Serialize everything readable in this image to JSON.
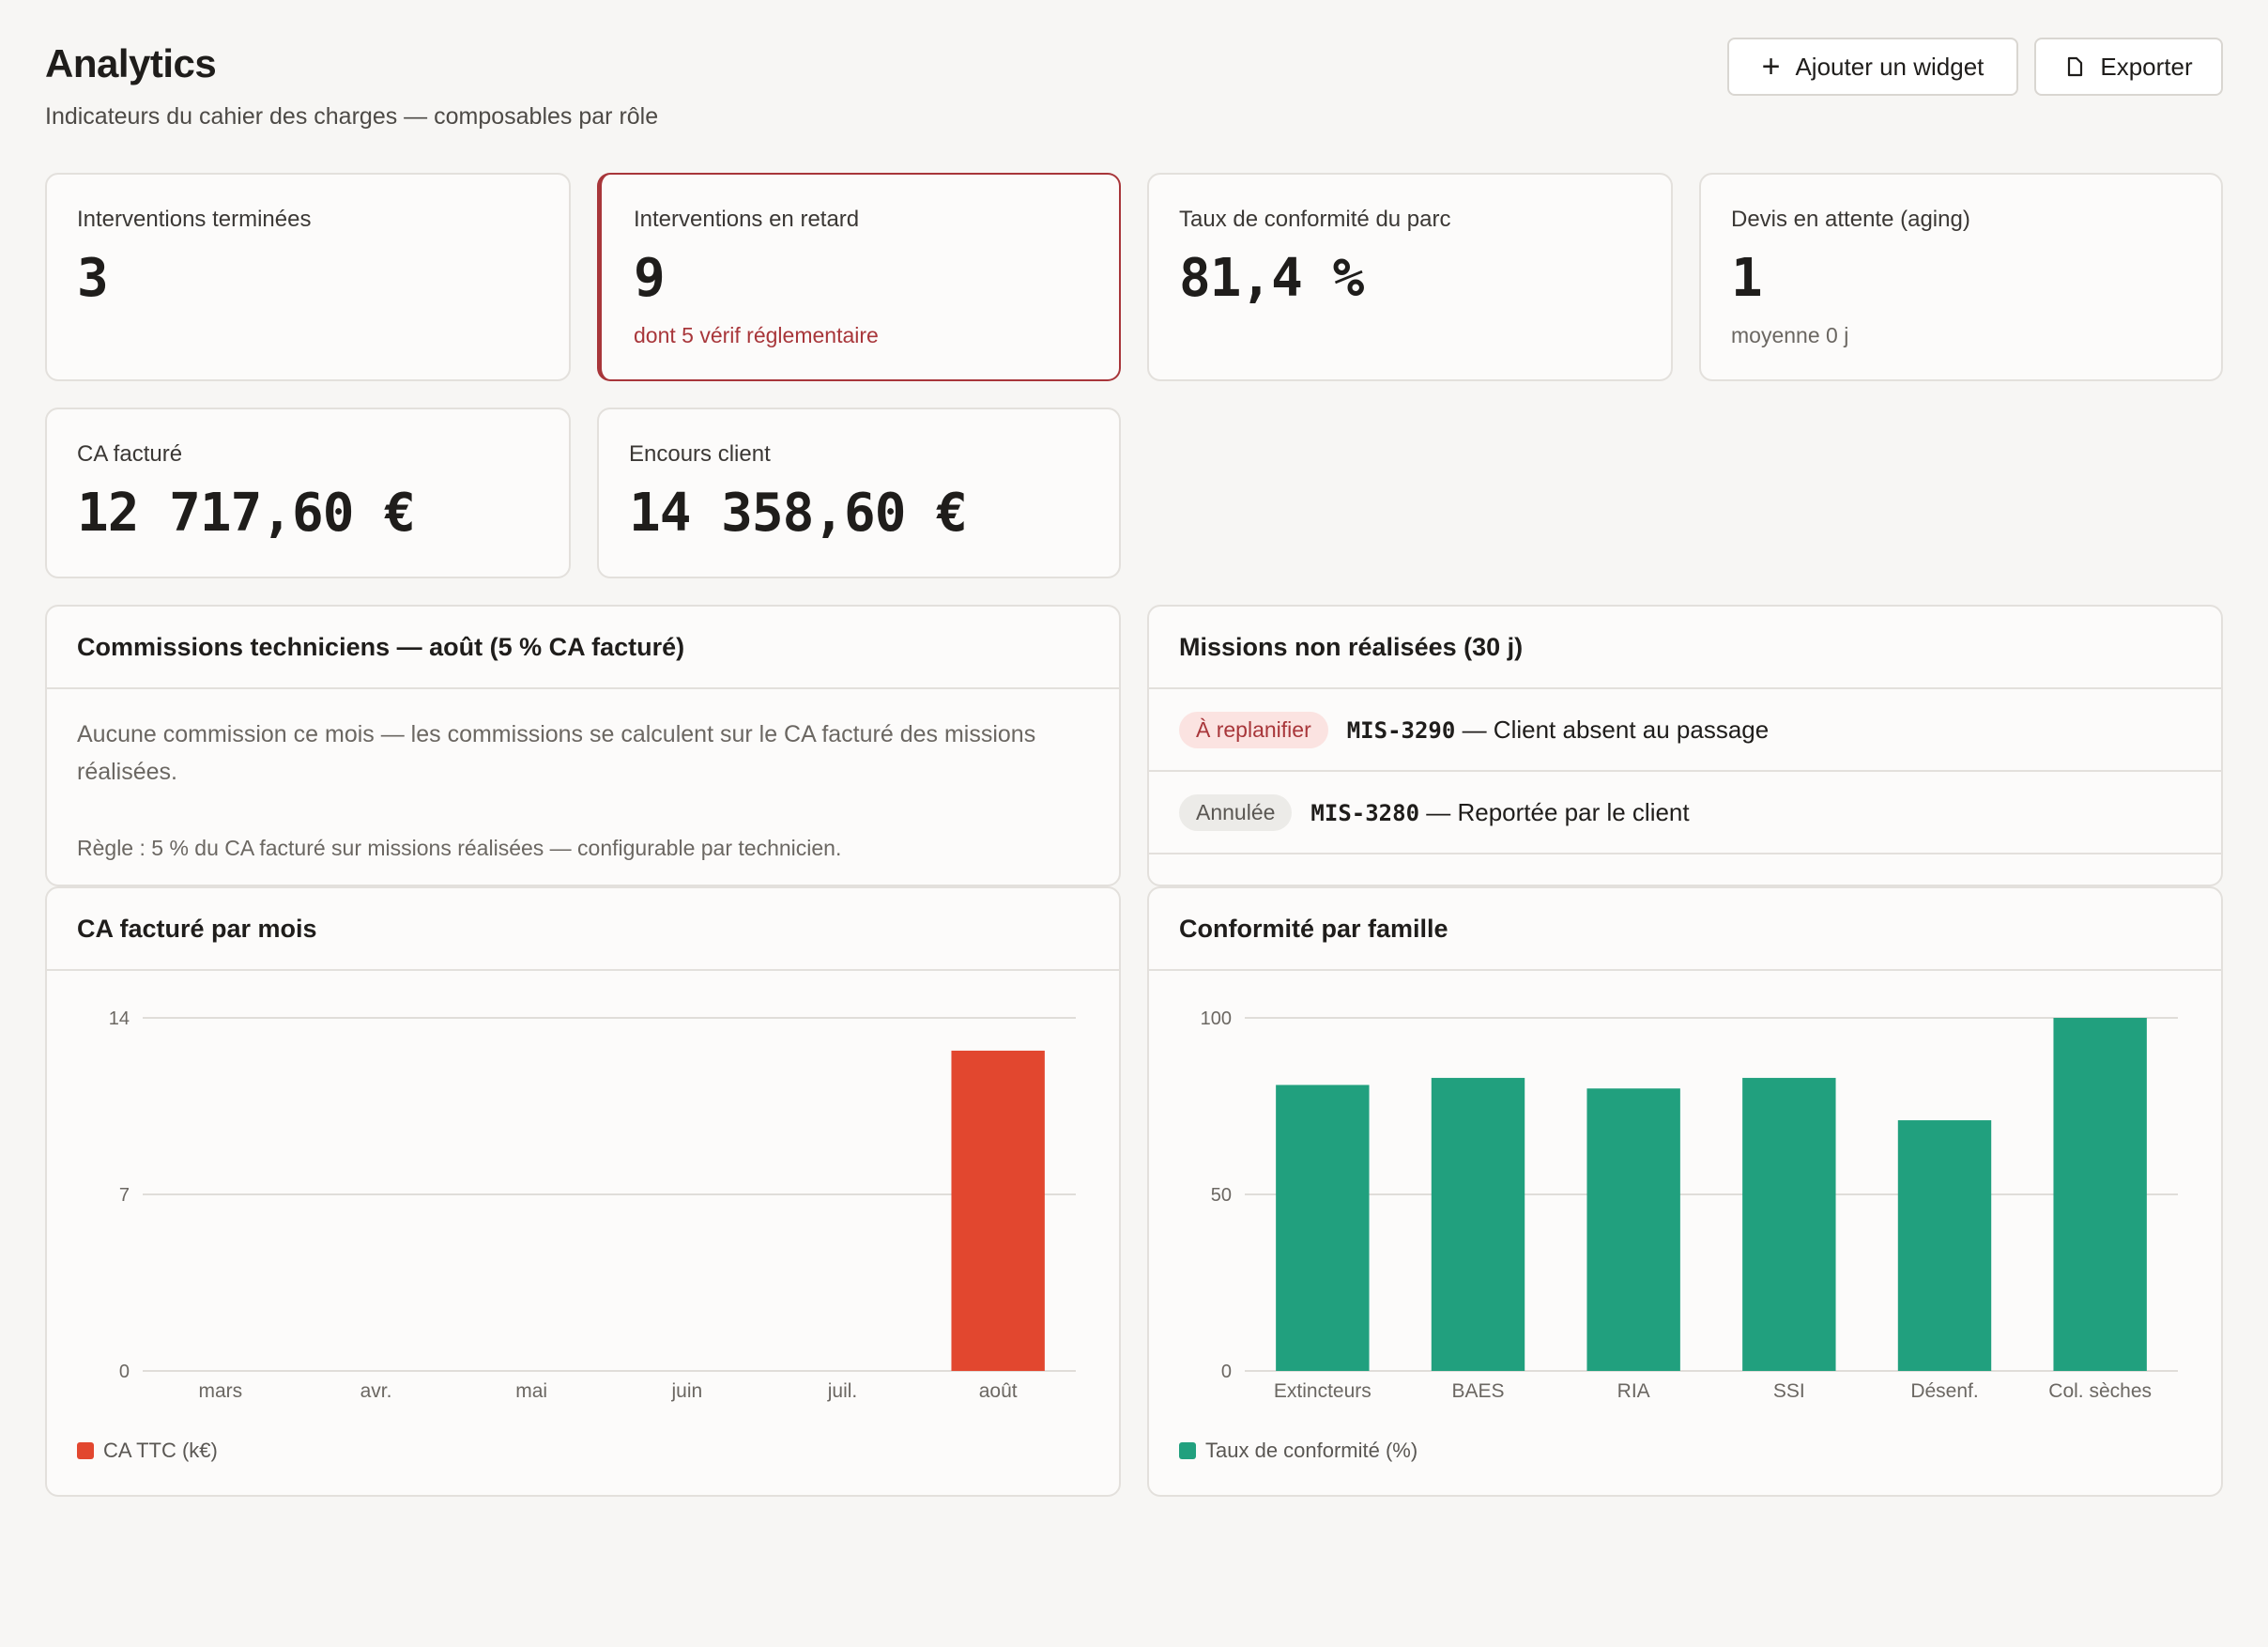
{
  "header": {
    "title": "Analytics",
    "subtitle": "Indicateurs du cahier des charges — composables par rôle",
    "add_widget_label": "Ajouter un widget",
    "export_label": "Exporter"
  },
  "kpis": {
    "done": {
      "label": "Interventions terminées",
      "value": "3"
    },
    "late": {
      "label": "Interventions en retard",
      "value": "9",
      "sub": "dont 5 vérif réglementaire"
    },
    "compliance": {
      "label": "Taux de conformité du parc",
      "value": "81,4 %"
    },
    "quotes": {
      "label": "Devis en attente (aging)",
      "value": "1",
      "sub": "moyenne 0 j"
    },
    "billed": {
      "label": "CA facturé",
      "value": "12 717,60 €"
    },
    "outstanding": {
      "label": "Encours client",
      "value": "14 358,60 €"
    }
  },
  "commissions": {
    "title": "Commissions techniciens — août (5 % CA facturé)",
    "text": "Aucune commission ce mois — les commissions se calculent sur le CA facturé des missions réalisées.",
    "rule": "Règle : 5 % du CA facturé sur missions réalisées — configurable par technicien."
  },
  "missions": {
    "title": "Missions non réalisées (30 j)",
    "items": [
      {
        "badge": "À replanifier",
        "badge_tone": "red",
        "code": "MIS-3290",
        "text": "— Client absent au passage"
      },
      {
        "badge": "Annulée",
        "badge_tone": "grey",
        "code": "MIS-3280",
        "text": "— Reportée par le client"
      }
    ]
  },
  "charts": {
    "revenue_title": "CA facturé par mois",
    "compliance_title": "Conformité par famille"
  },
  "chart_data": [
    {
      "type": "bar",
      "title": "CA facturé par mois",
      "categories": [
        "mars",
        "avr.",
        "mai",
        "juin",
        "juil.",
        "août"
      ],
      "series": [
        {
          "name": "CA TTC (k€)",
          "values": [
            0,
            0,
            0,
            0,
            0,
            12.7
          ]
        }
      ],
      "ylim": [
        0,
        14
      ],
      "yticks": [
        0,
        7,
        14
      ],
      "grid": true,
      "legend": "bottom-left",
      "color": "#e2472f"
    },
    {
      "type": "bar",
      "title": "Conformité par famille",
      "categories": [
        "Extincteurs",
        "BAES",
        "RIA",
        "SSI",
        "Désenf.",
        "Col. sèches"
      ],
      "series": [
        {
          "name": "Taux de conformité (%)",
          "values": [
            81,
            83,
            80,
            83,
            71,
            100
          ]
        }
      ],
      "ylim": [
        0,
        100
      ],
      "yticks": [
        0,
        50,
        100
      ],
      "grid": true,
      "legend": "bottom-left",
      "color": "#21a07e"
    }
  ]
}
